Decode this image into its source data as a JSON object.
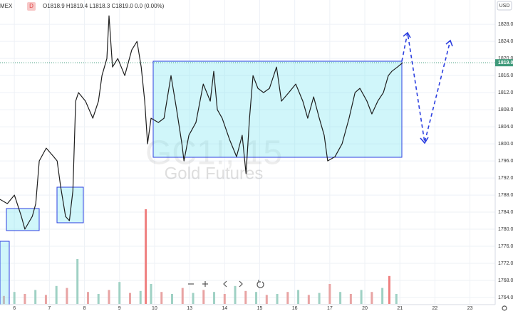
{
  "header": {
    "symbol": "MEX",
    "interval": "D",
    "ohlc": "O1818.9 H1819.4 L1818.3 C1819.0 0.0 (0.00%)",
    "currency": "USD"
  },
  "watermark": {
    "ticker": "GC1!, 15",
    "name": "Gold Futures"
  },
  "chart_data": {
    "type": "line",
    "last_price": {
      "value": 1819,
      "label": "1819.0"
    },
    "series": [
      {
        "color": "#1e1e1e",
        "x": [
          -0.41,
          -0.2,
          0,
          0.2,
          0.3,
          0.51,
          0.61,
          0.71,
          0.91,
          1.12,
          1.22,
          1.32,
          1.46,
          1.57,
          1.67,
          1.75,
          1.83,
          2.03,
          2.24,
          2.4,
          2.5,
          2.64,
          2.7,
          2.8,
          2.95,
          3.15,
          3.35,
          3.5,
          3.62,
          3.72,
          3.8,
          3.9,
          4.11,
          4.27,
          4.47,
          4.63,
          4.78,
          4.84,
          4.98,
          5.18,
          5.39,
          5.59,
          5.69,
          5.79,
          5.93,
          6.14,
          6.34,
          6.5,
          6.61,
          6.71,
          6.81,
          6.95,
          7.11,
          7.28,
          7.48,
          7.62,
          7.83,
          8.03,
          8.23,
          8.37,
          8.54,
          8.7,
          8.84,
          8.94,
          9.15,
          9.35,
          9.55,
          9.72,
          9.86,
          10.06,
          10.2,
          10.37,
          10.53,
          10.67,
          10.77,
          10.93,
          11.08
        ],
        "values": [
          1787,
          1786,
          1788,
          1783,
          1780,
          1783,
          1786,
          1796,
          1799,
          1797,
          1796,
          1790,
          1783,
          1782,
          1789,
          1810,
          1812,
          1810,
          1806,
          1810,
          1816,
          1820,
          1830,
          1818,
          1820,
          1816,
          1822,
          1824,
          1818,
          1810,
          1800,
          1806,
          1805,
          1806,
          1816,
          1808,
          1800,
          1796,
          1802,
          1805,
          1814,
          1810,
          1817,
          1808,
          1806,
          1801,
          1797,
          1802,
          1793,
          1806,
          1816,
          1813,
          1812,
          1813,
          1818,
          1810,
          1812,
          1814,
          1810,
          1806,
          1811,
          1806,
          1802,
          1796,
          1797,
          1800,
          1806,
          1812,
          1813,
          1810,
          1807,
          1810,
          1812,
          1816,
          1817,
          1818,
          1819
        ]
      }
    ],
    "volume": {
      "vlim": [
        0,
        100
      ],
      "x": [
        -0.3,
        0.0,
        0.3,
        0.6,
        0.9,
        1.2,
        1.5,
        1.8,
        2.1,
        2.4,
        2.7,
        3.0,
        3.3,
        3.6,
        3.75,
        3.9,
        4.2,
        4.5,
        4.8,
        5.1,
        5.4,
        5.7,
        6.0,
        6.3,
        6.6,
        6.9,
        7.2,
        7.5,
        7.8,
        8.1,
        8.4,
        8.7,
        9.0,
        9.3,
        9.6,
        9.9,
        10.2,
        10.5,
        10.7,
        10.9
      ],
      "values": [
        8,
        12,
        10,
        14,
        9,
        18,
        16,
        45,
        12,
        10,
        14,
        22,
        11,
        13,
        95,
        20,
        12,
        10,
        16,
        11,
        14,
        12,
        10,
        18,
        13,
        12,
        9,
        10,
        12,
        14,
        9,
        11,
        20,
        12,
        10,
        14,
        12,
        16,
        28,
        10
      ],
      "colors": [
        "#e8a3a3",
        "#9fd1c4",
        "#e8a3a3",
        "#9fd1c4",
        "#e8a3a3",
        "#9fd1c4",
        "#e8a3a3",
        "#9fd1c4",
        "#e8a3a3",
        "#9fd1c4",
        "#e8a3a3",
        "#9fd1c4",
        "#e8a3a3",
        "#9fd1c4",
        "#ef7f7f",
        "#9fd1c4",
        "#e8a3a3",
        "#9fd1c4",
        "#e8a3a3",
        "#9fd1c4",
        "#e8a3a3",
        "#9fd1c4",
        "#e8a3a3",
        "#9fd1c4",
        "#e8a3a3",
        "#9fd1c4",
        "#e8a3a3",
        "#9fd1c4",
        "#e8a3a3",
        "#9fd1c4",
        "#e8a3a3",
        "#9fd1c4",
        "#e8a3a3",
        "#9fd1c4",
        "#e8a3a3",
        "#9fd1c4",
        "#e8a3a3",
        "#9fd1c4",
        "#ef7f7f",
        "#9fd1c4"
      ]
    },
    "xlim": [
      -0.41,
      13.72
    ],
    "xticks": [
      {
        "value": 0,
        "label": "6"
      },
      {
        "value": 1,
        "label": "7"
      },
      {
        "value": 2,
        "label": "8"
      },
      {
        "value": 3,
        "label": "9"
      },
      {
        "value": 4,
        "label": "10"
      },
      {
        "value": 5,
        "label": "13"
      },
      {
        "value": 6,
        "label": "14"
      },
      {
        "value": 7,
        "label": "15"
      },
      {
        "value": 8,
        "label": "16"
      },
      {
        "value": 9,
        "label": "17"
      },
      {
        "value": 10,
        "label": "20"
      },
      {
        "value": 11,
        "label": "21"
      },
      {
        "value": 12,
        "label": "22"
      },
      {
        "value": 13,
        "label": "23"
      }
    ],
    "ylim": [
      1762.5,
      1833.7
    ],
    "yticks": [
      {
        "value": 1764,
        "label": "1764.0"
      },
      {
        "value": 1768,
        "label": "1768.0"
      },
      {
        "value": 1772,
        "label": "1772.0"
      },
      {
        "value": 1776,
        "label": "1776.0"
      },
      {
        "value": 1780,
        "label": "1780.0"
      },
      {
        "value": 1784,
        "label": "1784.0"
      },
      {
        "value": 1788,
        "label": "1788.0"
      },
      {
        "value": 1792,
        "label": "1792.0"
      },
      {
        "value": 1796,
        "label": "1796.0"
      },
      {
        "value": 1800,
        "label": "1800.0"
      },
      {
        "value": 1804,
        "label": "1804.0"
      },
      {
        "value": 1808,
        "label": "1808.0"
      },
      {
        "value": 1812,
        "label": "1812.0"
      },
      {
        "value": 1816,
        "label": "1816.0"
      },
      {
        "value": 1820,
        "label": "1820.0"
      },
      {
        "value": 1824,
        "label": "1824.0"
      },
      {
        "value": 1828,
        "label": "1828.0"
      }
    ],
    "grid": true
  }
}
